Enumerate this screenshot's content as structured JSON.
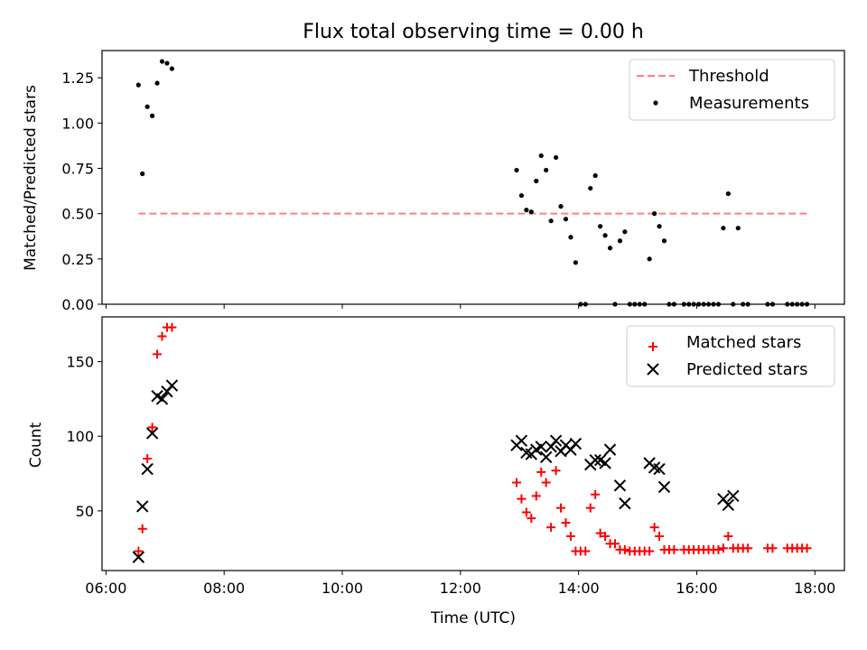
{
  "chart_data": [
    {
      "type": "scatter",
      "title": "Flux total observing time = 0.00 h",
      "xlabel": "",
      "ylabel": "Matched/Predicted stars",
      "x_is_time": true,
      "xlim": [
        "05:56",
        "18:30"
      ],
      "ylim": [
        0,
        1.4
      ],
      "yticks": [
        0.0,
        0.25,
        0.5,
        0.75,
        1.0,
        1.25
      ],
      "ytick_labels": [
        "0.00",
        "0.25",
        "0.50",
        "0.75",
        "1.00",
        "1.25"
      ],
      "legend_position": "top-right",
      "threshold": {
        "name": "Threshold",
        "value": 0.5,
        "x_start": "06:33",
        "x_end": "17:53",
        "color": "#ff7f7f"
      },
      "series": [
        {
          "name": "Measurements",
          "color": "#000000",
          "x": [
            "06:33",
            "06:37",
            "06:42",
            "06:47",
            "06:52",
            "06:57",
            "07:02",
            "07:07",
            "12:57",
            "13:02",
            "13:07",
            "13:12",
            "13:17",
            "13:22",
            "13:27",
            "13:32",
            "13:37",
            "13:42",
            "13:47",
            "13:52",
            "13:57",
            "14:02",
            "14:07",
            "14:12",
            "14:17",
            "14:22",
            "14:27",
            "14:32",
            "14:37",
            "14:42",
            "14:47",
            "14:52",
            "14:57",
            "15:02",
            "15:07",
            "15:12",
            "15:17",
            "15:22",
            "15:27",
            "15:32",
            "15:37",
            "15:47",
            "15:52",
            "15:57",
            "16:02",
            "16:07",
            "16:12",
            "16:17",
            "16:22",
            "16:27",
            "16:32",
            "16:37",
            "16:42",
            "16:47",
            "16:52",
            "17:12",
            "17:17",
            "17:32",
            "17:37",
            "17:42",
            "17:47",
            "17:52"
          ],
          "y": [
            1.21,
            0.72,
            1.09,
            1.04,
            1.22,
            1.34,
            1.33,
            1.3,
            0.74,
            0.6,
            0.52,
            0.51,
            0.68,
            0.82,
            0.74,
            0.46,
            0.81,
            0.54,
            0.47,
            0.37,
            0.23,
            0.0,
            0.0,
            0.64,
            0.71,
            0.43,
            0.38,
            0.31,
            0.0,
            0.35,
            0.4,
            0.0,
            0.0,
            0.0,
            0.0,
            0.25,
            0.5,
            0.43,
            0.35,
            0.0,
            0.0,
            0.0,
            0.0,
            0.0,
            0.0,
            0.0,
            0.0,
            0.0,
            0.0,
            0.42,
            0.61,
            0.0,
            0.42,
            0.0,
            0.0,
            0.0,
            0.0,
            0.0,
            0.0,
            0.0,
            0.0,
            0.0
          ]
        }
      ]
    },
    {
      "type": "scatter",
      "title": "",
      "xlabel": "Time (UTC)",
      "ylabel": "Count",
      "x_is_time": true,
      "xlim": [
        "05:56",
        "18:30"
      ],
      "ylim": [
        10,
        180
      ],
      "yticks": [
        50,
        100,
        150
      ],
      "ytick_labels": [
        "50",
        "100",
        "150"
      ],
      "xticks": [
        "06:00",
        "08:00",
        "10:00",
        "12:00",
        "14:00",
        "16:00",
        "18:00"
      ],
      "xtick_labels": [
        "06:00",
        "08:00",
        "10:00",
        "12:00",
        "14:00",
        "16:00",
        "18:00"
      ],
      "legend_position": "top-right",
      "series": [
        {
          "name": "Matched stars",
          "marker": "plus",
          "color": "#ff0000",
          "x": [
            "06:33",
            "06:37",
            "06:42",
            "06:47",
            "06:52",
            "06:57",
            "07:02",
            "07:07",
            "12:57",
            "13:02",
            "13:07",
            "13:12",
            "13:17",
            "13:22",
            "13:27",
            "13:32",
            "13:37",
            "13:42",
            "13:47",
            "13:52",
            "13:57",
            "14:02",
            "14:07",
            "14:12",
            "14:17",
            "14:22",
            "14:27",
            "14:32",
            "14:37",
            "14:42",
            "14:47",
            "14:52",
            "14:57",
            "15:02",
            "15:07",
            "15:12",
            "15:17",
            "15:22",
            "15:27",
            "15:32",
            "15:37",
            "15:47",
            "15:52",
            "15:57",
            "16:02",
            "16:07",
            "16:12",
            "16:17",
            "16:22",
            "16:27",
            "16:32",
            "16:37",
            "16:42",
            "16:47",
            "16:52",
            "17:12",
            "17:17",
            "17:32",
            "17:37",
            "17:42",
            "17:47",
            "17:52"
          ],
          "y": [
            23,
            38,
            85,
            106,
            155,
            167,
            173,
            173,
            69,
            58,
            49,
            45,
            60,
            76,
            69,
            39,
            77,
            52,
            42,
            33,
            23,
            23,
            23,
            52,
            61,
            35,
            33,
            28,
            28,
            24,
            24,
            23,
            23,
            23,
            23,
            23,
            39,
            33,
            24,
            24,
            24,
            24,
            24,
            24,
            24,
            24,
            24,
            24,
            24,
            25,
            33,
            25,
            25,
            25,
            25,
            25,
            25,
            25,
            25,
            25,
            25,
            25
          ]
        },
        {
          "name": "Predicted stars",
          "marker": "x",
          "color": "#000000",
          "x": [
            "06:33",
            "06:37",
            "06:42",
            "06:47",
            "06:52",
            "06:57",
            "07:02",
            "07:07",
            "12:57",
            "13:02",
            "13:07",
            "13:12",
            "13:17",
            "13:22",
            "13:27",
            "13:32",
            "13:37",
            "13:42",
            "13:47",
            "13:52",
            "13:57",
            "14:12",
            "14:17",
            "14:22",
            "14:27",
            "14:32",
            "14:42",
            "14:47",
            "15:12",
            "15:17",
            "15:22",
            "15:27",
            "16:27",
            "16:32",
            "16:37"
          ],
          "y": [
            19,
            53,
            78,
            102,
            127,
            125,
            130,
            134,
            94,
            97,
            89,
            88,
            91,
            93,
            86,
            93,
            97,
            90,
            94,
            91,
            95,
            81,
            84,
            84,
            82,
            91,
            67,
            55,
            82,
            79,
            78,
            66,
            58,
            54,
            60
          ]
        }
      ]
    }
  ]
}
